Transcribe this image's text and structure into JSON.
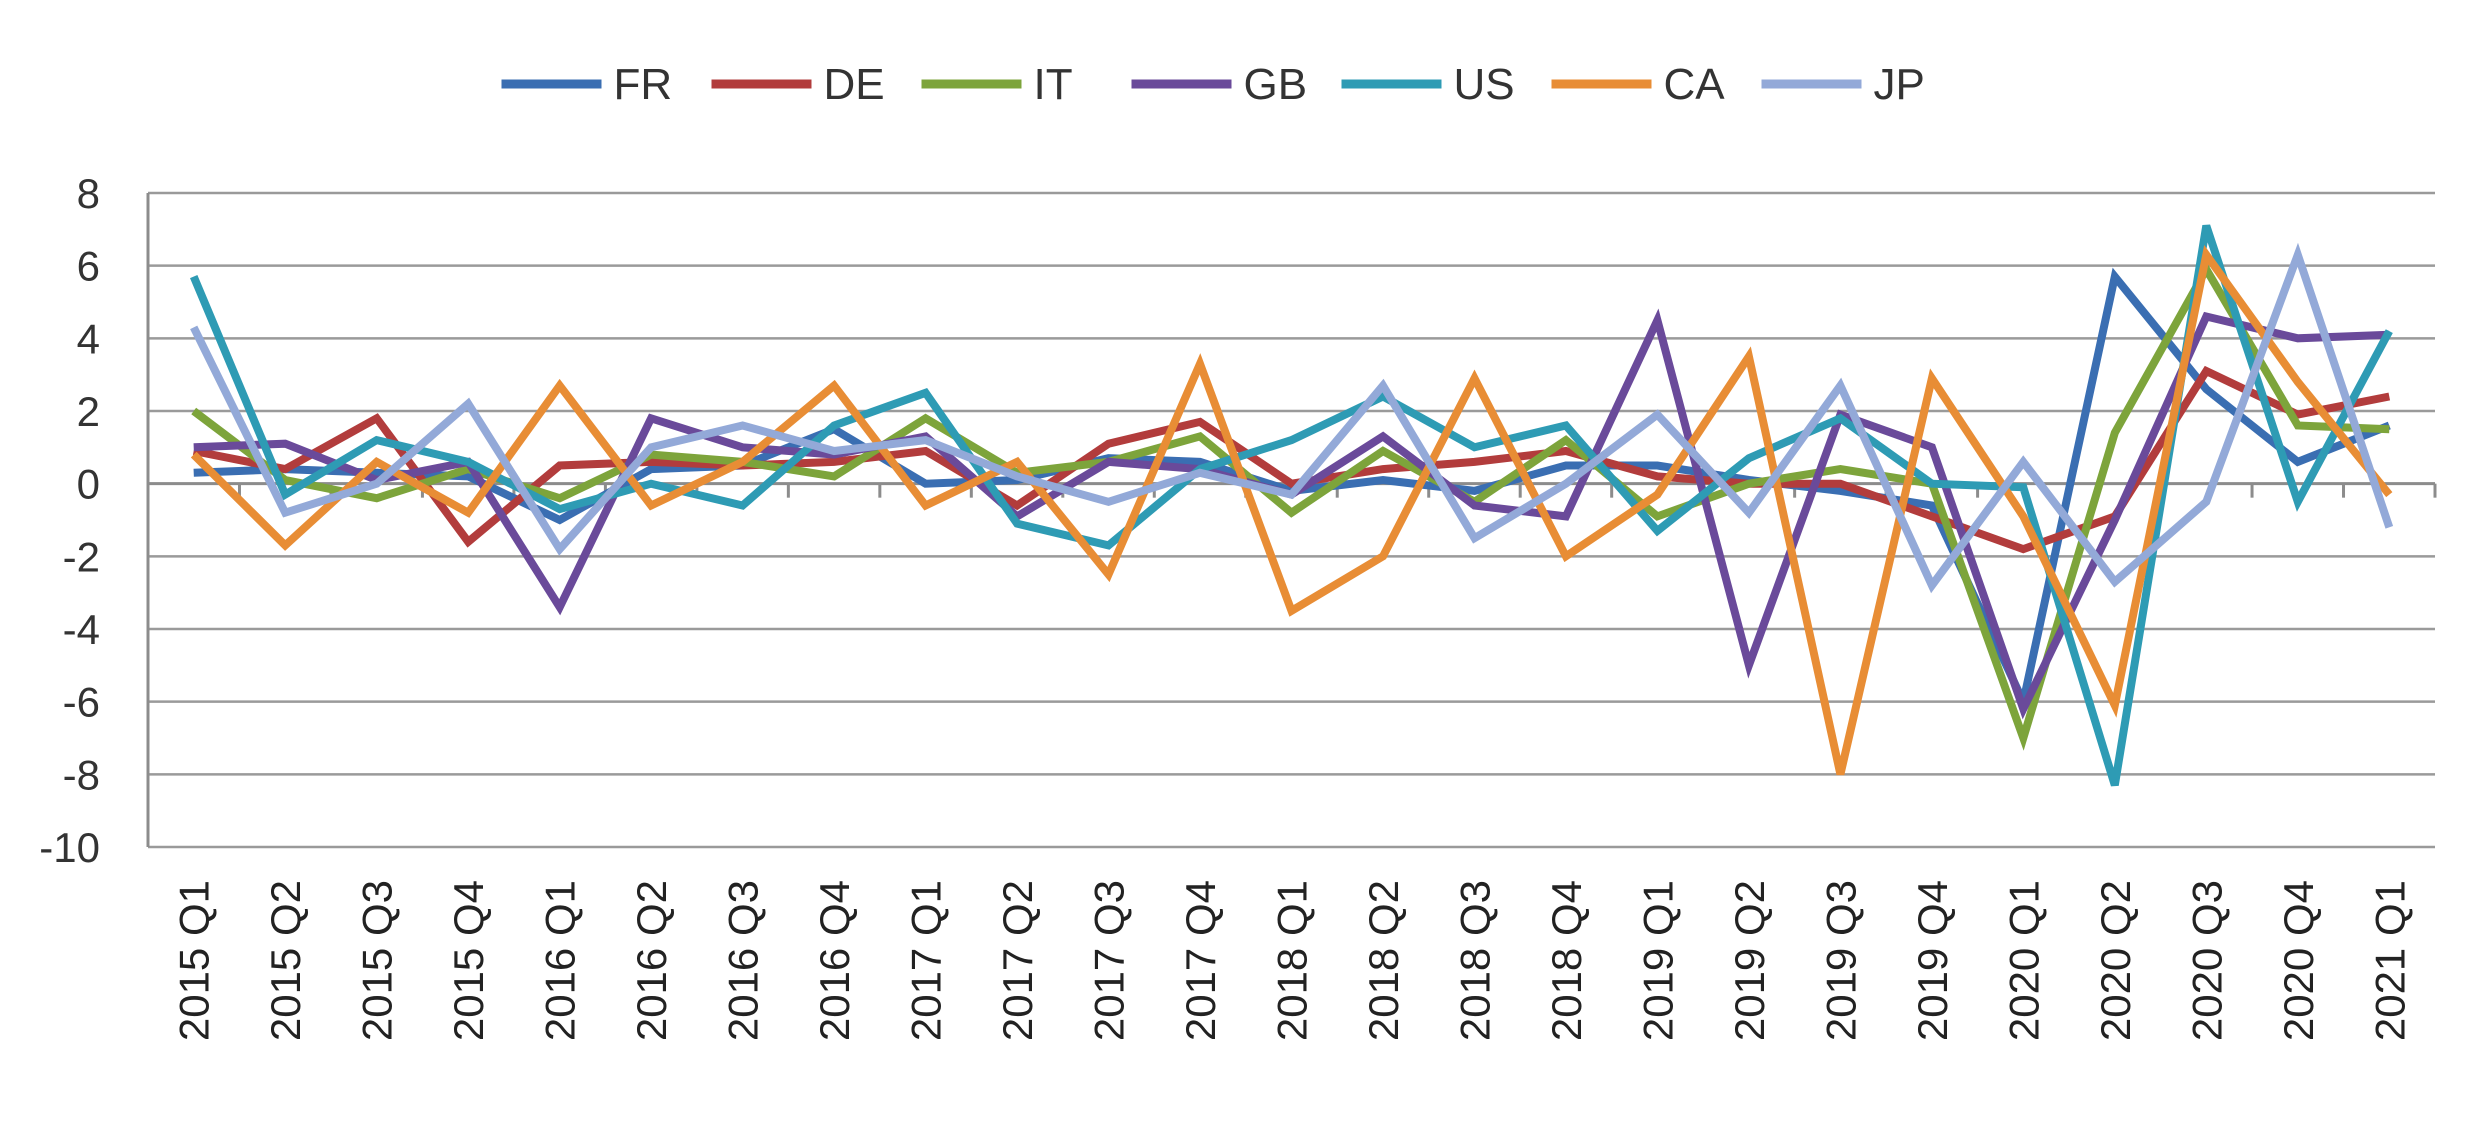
{
  "chart_data": {
    "type": "line",
    "title": "",
    "xlabel": "",
    "ylabel": "",
    "ylim": [
      -10,
      8
    ],
    "yticks": [
      8,
      6,
      4,
      2,
      0,
      -2,
      -4,
      -6,
      -8,
      -10
    ],
    "grid": true,
    "legend_position": "top",
    "categories": [
      "2015 Q1",
      "2015 Q2",
      "2015 Q3",
      "2015 Q4",
      "2016 Q1",
      "2016 Q2",
      "2016 Q3",
      "2016 Q4",
      "2017 Q1",
      "2017 Q2",
      "2017 Q3",
      "2017 Q4",
      "2018 Q1",
      "2018 Q2",
      "2018 Q3",
      "2018 Q4",
      "2019 Q1",
      "2019 Q2",
      "2019 Q3",
      "2019 Q4",
      "2020 Q1",
      "2020 Q2",
      "2020 Q3",
      "2020 Q4",
      "2021 Q1"
    ],
    "series": [
      {
        "name": "FR",
        "color": "#3a6eb2",
        "values": [
          0.3,
          0.4,
          0.3,
          0.2,
          -1.0,
          0.4,
          0.5,
          1.5,
          0.0,
          0.1,
          0.7,
          0.6,
          -0.2,
          0.1,
          -0.2,
          0.5,
          0.5,
          0.1,
          -0.2,
          -0.6,
          -6.0,
          5.7,
          2.6,
          0.6,
          1.6
        ]
      },
      {
        "name": "DE",
        "color": "#b23c3c",
        "values": [
          0.9,
          0.4,
          1.8,
          -1.6,
          0.5,
          0.6,
          0.5,
          0.6,
          0.9,
          -0.6,
          1.1,
          1.7,
          0.0,
          0.4,
          0.6,
          0.9,
          0.2,
          0.0,
          0.0,
          -0.9,
          -1.8,
          -0.9,
          3.1,
          1.9,
          2.4
        ]
      },
      {
        "name": "IT",
        "color": "#7da43b",
        "values": [
          2.0,
          0.1,
          -0.4,
          0.4,
          -0.4,
          0.8,
          0.6,
          0.2,
          1.8,
          0.3,
          0.6,
          1.3,
          -0.8,
          0.9,
          -0.5,
          1.2,
          -0.9,
          0.0,
          0.4,
          0.0,
          -7.0,
          1.4,
          5.9,
          1.6,
          1.5
        ]
      },
      {
        "name": "GB",
        "color": "#6a4a9a",
        "values": [
          1.0,
          1.1,
          0.1,
          0.6,
          -3.4,
          1.8,
          1.0,
          0.8,
          1.3,
          -0.9,
          0.6,
          0.4,
          -0.3,
          1.3,
          -0.6,
          -0.9,
          4.5,
          -5.0,
          1.9,
          1.0,
          -6.2,
          -1.0,
          4.6,
          4.0,
          4.1
        ]
      },
      {
        "name": "US",
        "color": "#2e9bb4",
        "values": [
          5.7,
          -0.3,
          1.2,
          0.6,
          -0.7,
          0.0,
          -0.6,
          1.6,
          2.5,
          -1.1,
          -1.7,
          0.4,
          1.2,
          2.4,
          1.0,
          1.6,
          -1.3,
          0.7,
          1.8,
          0.0,
          -0.1,
          -8.3,
          7.1,
          -0.5,
          4.2
        ]
      },
      {
        "name": "CA",
        "color": "#e88d35",
        "values": [
          0.8,
          -1.7,
          0.6,
          -0.8,
          2.7,
          -0.6,
          0.6,
          2.7,
          -0.6,
          0.6,
          -2.5,
          3.3,
          -3.5,
          -2.0,
          2.9,
          -2.0,
          -0.3,
          3.5,
          -8.0,
          2.9,
          -0.9,
          -6.1,
          6.3,
          2.8,
          -0.3
        ]
      },
      {
        "name": "JP",
        "color": "#93a9d8",
        "values": [
          4.3,
          -0.8,
          0.0,
          2.2,
          -1.8,
          1.0,
          1.6,
          0.9,
          1.2,
          0.2,
          -0.5,
          0.3,
          -0.3,
          2.7,
          -1.5,
          0.0,
          1.9,
          -0.8,
          2.7,
          -2.8,
          0.6,
          -2.7,
          -0.5,
          6.3,
          -1.2
        ]
      }
    ]
  }
}
